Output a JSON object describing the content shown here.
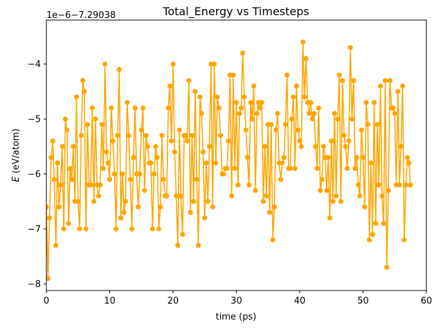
{
  "chart_data": {
    "type": "line",
    "title": "Total_Energy vs Timesteps",
    "xlabel": "time (ps)",
    "ylabel": "E (eV/atom)",
    "ylabel_italic": "E",
    "ylabel_unit": " (eV/atom)",
    "offset_text": "1e−6−7.29038",
    "xlim": [
      0,
      60
    ],
    "ylim": [
      -8.12,
      -3.2
    ],
    "xticks": [
      0,
      10,
      20,
      30,
      40,
      50,
      60
    ],
    "xtick_labels": [
      "0",
      "10",
      "20",
      "30",
      "40",
      "50",
      "60"
    ],
    "yticks": [
      -8,
      -7,
      -6,
      -5,
      -4
    ],
    "ytick_labels": [
      "−8",
      "−7",
      "−6",
      "−5",
      "−4"
    ],
    "grid": false,
    "legend": "none",
    "x_start": 0,
    "x_step": 0.25,
    "series": [
      {
        "color": "#FFA500",
        "marker": "circle",
        "values": [
          -6.6,
          -7.9,
          -6.8,
          -5.7,
          -5.4,
          -6.1,
          -7.3,
          -5.8,
          -6.6,
          -6.2,
          -5.5,
          -7.0,
          -5.0,
          -5.2,
          -6.9,
          -5.9,
          -6.1,
          -5.5,
          -6.5,
          -4.6,
          -6.5,
          -7.0,
          -5.3,
          -4.3,
          -4.5,
          -7.0,
          -5.1,
          -6.2,
          -6.2,
          -4.8,
          -6.5,
          -5.0,
          -6.2,
          -6.4,
          -6.2,
          -5.1,
          -5.9,
          -4.0,
          -5.6,
          -5.8,
          -6.1,
          -4.8,
          -5.4,
          -6.0,
          -7.0,
          -5.3,
          -4.1,
          -6.8,
          -6.0,
          -6.7,
          -6.5,
          -4.7,
          -5.3,
          -6.1,
          -7.0,
          -5.7,
          -4.8,
          -6.0,
          -6.6,
          -6.0,
          -5.2,
          -4.8,
          -6.3,
          -5.3,
          -5.5,
          -5.8,
          -5.8,
          -7.0,
          -6.0,
          -5.5,
          -5.7,
          -7.0,
          -6.6,
          -5.3,
          -6.1,
          -6.4,
          -6.4,
          -4.8,
          -4.4,
          -5.4,
          -4.0,
          -5.6,
          -6.4,
          -7.3,
          -5.2,
          -6.4,
          -7.1,
          -5.3,
          -5.3,
          -5.4,
          -4.3,
          -6.7,
          -5.3,
          -6.5,
          -4.5,
          -6.1,
          -7.3,
          -4.6,
          -4.9,
          -5.6,
          -6.8,
          -5.8,
          -6.5,
          -5.5,
          -4.0,
          -6.6,
          -4.0,
          -5.8,
          -4.6,
          -4.8,
          -5.3,
          -6.0,
          -6.0,
          -5.9,
          -5.9,
          -5.4,
          -4.2,
          -6.4,
          -4.2,
          -5.9,
          -4.7,
          -6.2,
          -4.9,
          -4.8,
          -3.8,
          -4.6,
          -5.2,
          -5.7,
          -6.2,
          -4.7,
          -5.0,
          -4.4,
          -6.3,
          -4.9,
          -4.7,
          -4.8,
          -4.7,
          -6.5,
          -5.5,
          -6.4,
          -5.1,
          -6.7,
          -5.1,
          -7.2,
          -6.6,
          -5.2,
          -4.9,
          -5.8,
          -6.1,
          -5.8,
          -5.7,
          -5.1,
          -4.2,
          -5.9,
          -5.9,
          -5.0,
          -4.6,
          -5.9,
          -4.4,
          -5.2,
          -5.4,
          -5.5,
          -3.6,
          -4.6,
          -3.9,
          -4.7,
          -4.9,
          -4.7,
          -5.0,
          -4.9,
          -5.5,
          -5.9,
          -4.8,
          -6.3,
          -6.1,
          -5.5,
          -5.7,
          -6.3,
          -5.7,
          -6.8,
          -5.4,
          -6.5,
          -4.9,
          -6.4,
          -5.0,
          -4.2,
          -6.5,
          -4.3,
          -5.3,
          -5.5,
          -5.9,
          -5.4,
          -3.7,
          -5.0,
          -4.3,
          -5.9,
          -5.7,
          -6.2,
          -6.4,
          -5.2,
          -5.7,
          -6.6,
          -4.7,
          -5.1,
          -7.2,
          -5.8,
          -7.1,
          -4.7,
          -6.9,
          -5.1,
          -6.2,
          -4.4,
          -6.4,
          -6.9,
          -4.3,
          -7.7,
          -6.3,
          -4.3,
          -4.8,
          -4.8,
          -4.9,
          -6.2,
          -4.5,
          -6.2,
          -5.5,
          -4.4,
          -7.2,
          -6.2,
          -5.7,
          -5.8,
          -6.2
        ]
      }
    ]
  }
}
